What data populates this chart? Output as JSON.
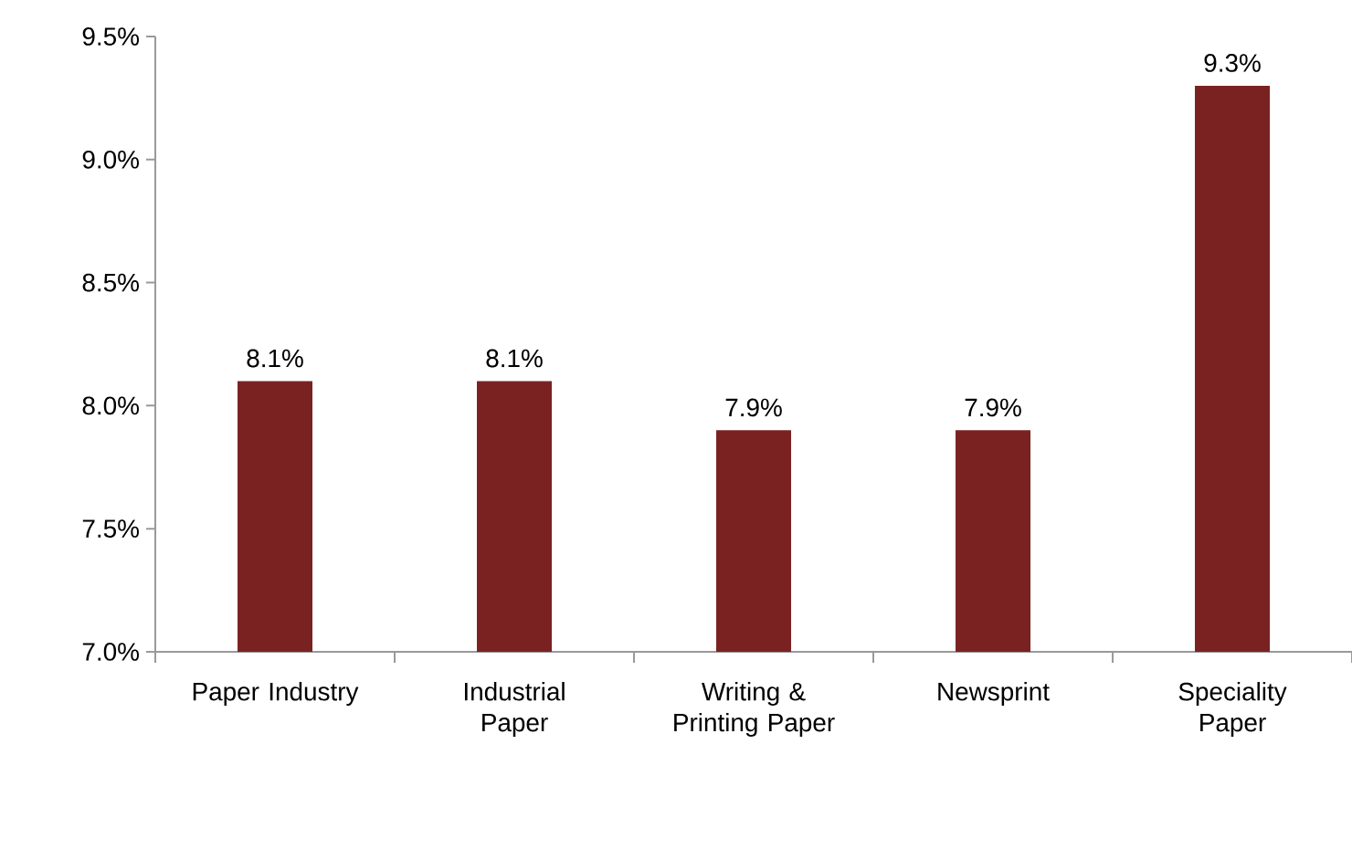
{
  "chart_data": {
    "type": "bar",
    "categories": [
      "Paper Industry",
      "Industrial Paper",
      "Writing & Printing Paper",
      "Newsprint",
      "Speciality Paper"
    ],
    "values": [
      8.1,
      8.1,
      7.9,
      7.9,
      9.3
    ],
    "value_labels": [
      "8.1%",
      "8.1%",
      "7.9%",
      "7.9%",
      "9.3%"
    ],
    "color": "#7a2222",
    "ylim": [
      7.0,
      9.5
    ],
    "yticks": [
      {
        "value": 7.0,
        "label": "7.0%"
      },
      {
        "value": 7.5,
        "label": "7.5%"
      },
      {
        "value": 8.0,
        "label": "8.0%"
      },
      {
        "value": 8.5,
        "label": "8.5%"
      },
      {
        "value": 9.0,
        "label": "9.0%"
      },
      {
        "value": 9.5,
        "label": "9.5%"
      }
    ],
    "grid": false
  }
}
